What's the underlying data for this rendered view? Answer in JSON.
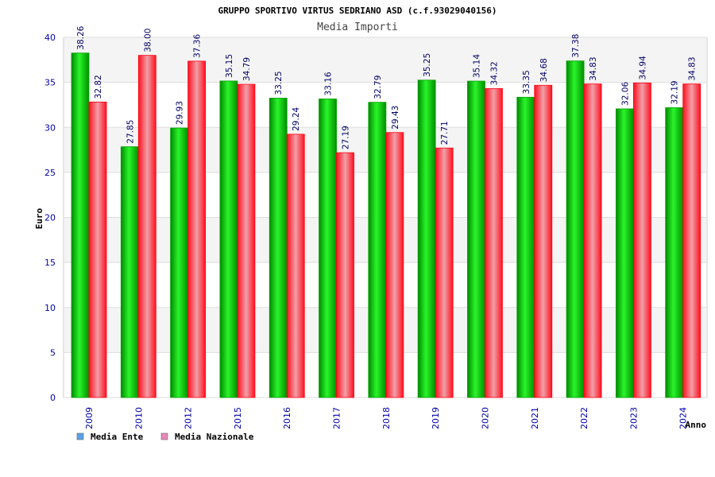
{
  "chart_data": {
    "type": "bar",
    "title": "GRUPPO SPORTIVO VIRTUS SEDRIANO ASD (c.f.93029040156)",
    "subtitle": "Media Importi",
    "xlabel": "Anno",
    "ylabel": "Euro",
    "ylim": [
      0,
      40
    ],
    "yticks": [
      "0",
      "5",
      "10",
      "15",
      "20",
      "25",
      "30",
      "35",
      "40"
    ],
    "grid": true,
    "legend_position": "bottom-left",
    "categories": [
      "2009",
      "2010",
      "2012",
      "2015",
      "2016",
      "2017",
      "2018",
      "2019",
      "2020",
      "2021",
      "2022",
      "2023",
      "2024"
    ],
    "series": [
      {
        "name": "Media Ente",
        "color": "#00c000",
        "legend_color": "#5aa0e8",
        "values": [
          38.26,
          27.85,
          29.93,
          35.15,
          33.25,
          33.16,
          32.79,
          35.25,
          35.14,
          33.35,
          37.38,
          32.06,
          32.19
        ],
        "labels": [
          "38.26",
          "27.85",
          "29.93",
          "35.15",
          "33.25",
          "33.16",
          "32.79",
          "35.25",
          "35.14",
          "33.35",
          "37.38",
          "32.06",
          "32.19"
        ]
      },
      {
        "name": "Media Nazionale",
        "color": "#ff1a2a",
        "legend_color": "#e888b8",
        "values": [
          32.82,
          38.0,
          37.36,
          34.79,
          29.24,
          27.19,
          29.43,
          27.71,
          34.32,
          34.68,
          34.83,
          34.94,
          34.83
        ],
        "labels": [
          "32.82",
          "38.00",
          "37.36",
          "34.79",
          "29.24",
          "27.19",
          "29.43",
          "27.71",
          "34.32",
          "34.68",
          "34.83",
          "34.94",
          "34.83"
        ]
      }
    ]
  }
}
